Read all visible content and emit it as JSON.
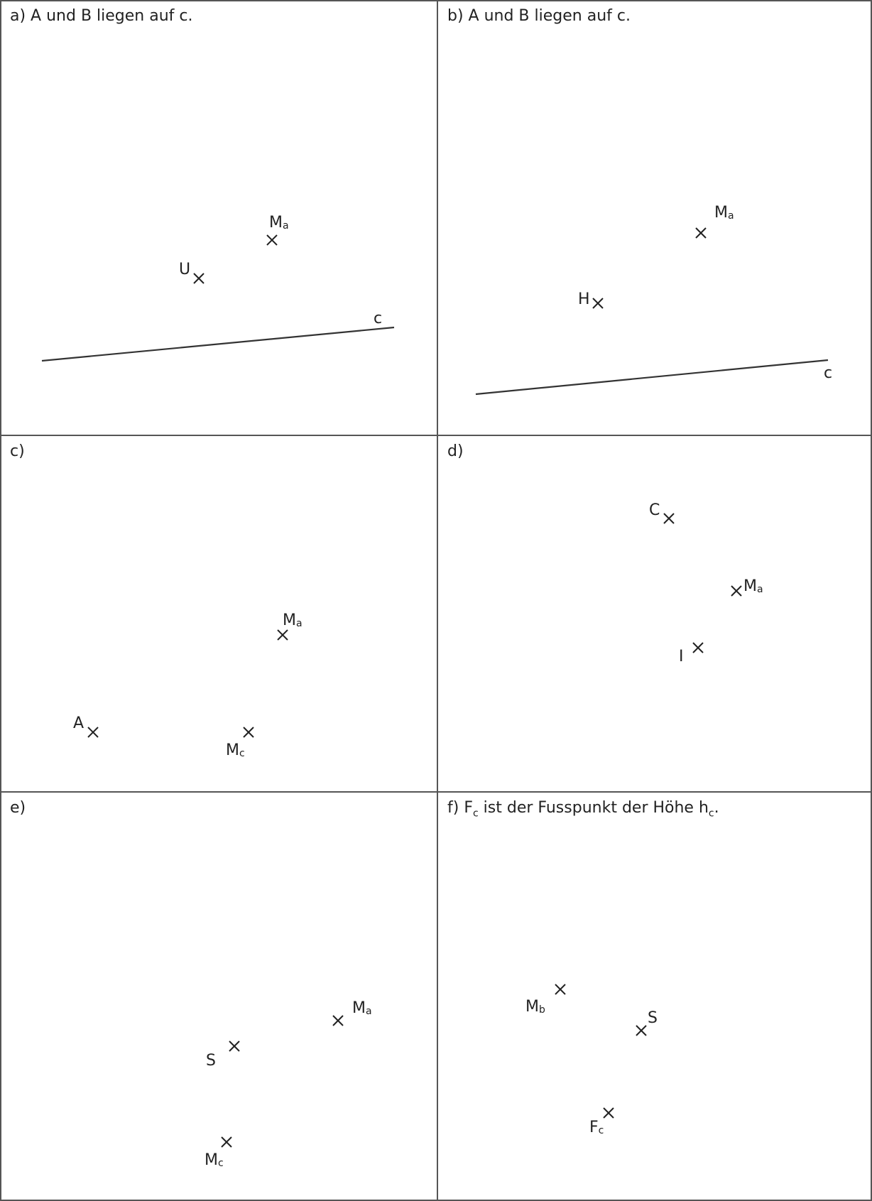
{
  "panels": {
    "a": {
      "title": "a) A und B liegen auf c.",
      "points": {
        "Ma": {
          "main": "M",
          "sub": "a"
        },
        "U": {
          "main": "U"
        }
      },
      "line_label": "c"
    },
    "b": {
      "title": "b) A und B liegen auf c.",
      "points": {
        "Ma": {
          "main": "M",
          "sub": "a"
        },
        "H": {
          "main": "H"
        }
      },
      "line_label": "c"
    },
    "c": {
      "title": "c)",
      "points": {
        "Ma": {
          "main": "M",
          "sub": "a"
        },
        "A": {
          "main": "A"
        },
        "Mc": {
          "main": "M",
          "sub": "c"
        }
      }
    },
    "d": {
      "title": "d)",
      "points": {
        "C": {
          "main": "C"
        },
        "Ma": {
          "main": "M",
          "sub": "a"
        },
        "I": {
          "main": "I"
        }
      }
    },
    "e": {
      "title": "e)",
      "points": {
        "Ma": {
          "main": "M",
          "sub": "a"
        },
        "S": {
          "main": "S"
        },
        "Mc": {
          "main": "M",
          "sub": "c"
        }
      }
    },
    "f": {
      "title_prefix": "f) F",
      "title_sub1": "c",
      "title_mid": " ist der Fusspunkt der Höhe h",
      "title_sub2": "c",
      "title_suffix": ".",
      "points": {
        "Mb": {
          "main": "M",
          "sub": "b"
        },
        "S": {
          "main": "S"
        },
        "Fc": {
          "main": "F",
          "sub": "c"
        }
      }
    }
  }
}
